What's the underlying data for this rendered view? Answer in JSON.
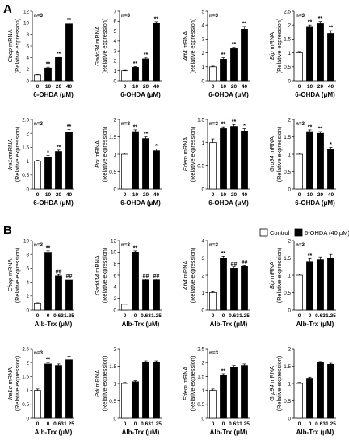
{
  "panels": [
    {
      "letter": "A"
    },
    {
      "letter": "B"
    }
  ],
  "legend": {
    "items": [
      "Control",
      "6-OHDA (40 μM)"
    ]
  },
  "chart_data": [
    {
      "type": "bar",
      "panel": "A",
      "ylabel_gene": "Chop",
      "ylabel_rest": " mRNA",
      "ylabel_unit": "(Relative expression)",
      "n_label": "n=3",
      "xlabel": "6-OHDA (μM)",
      "categories": [
        "0",
        "10",
        "20",
        "40"
      ],
      "values": [
        1,
        2.2,
        4.0,
        9.8
      ],
      "errors": [
        0.05,
        0.15,
        0.15,
        0.2
      ],
      "fill": [
        "white",
        "black",
        "black",
        "black"
      ],
      "marks": [
        "",
        "**",
        "**",
        "**"
      ],
      "ylim": [
        0,
        12
      ],
      "yticks": [
        0,
        2,
        4,
        6,
        8,
        10,
        12
      ]
    },
    {
      "type": "bar",
      "panel": "A",
      "ylabel_gene": "Gadd34",
      "ylabel_rest": " mRNA",
      "ylabel_unit": "(Relative expression)",
      "n_label": "n=3",
      "xlabel": "6-OHDA (μM)",
      "categories": [
        "0",
        "10",
        "20",
        "40"
      ],
      "values": [
        1,
        1.35,
        2.2,
        5.8
      ],
      "errors": [
        0.05,
        0.08,
        0.1,
        0.15
      ],
      "fill": [
        "white",
        "black",
        "black",
        "black"
      ],
      "marks": [
        "",
        "**",
        "**",
        "**"
      ],
      "ylim": [
        0,
        7
      ],
      "yticks": [
        0,
        1,
        2,
        3,
        4,
        5,
        6,
        7
      ]
    },
    {
      "type": "bar",
      "panel": "A",
      "ylabel_gene": "Atf4",
      "ylabel_rest": " mRNA",
      "ylabel_unit": "(Relative expression)",
      "n_label": "n=3",
      "xlabel": "6-OHDA (μM)",
      "categories": [
        "0",
        "10",
        "20",
        "40"
      ],
      "values": [
        1,
        1.55,
        2.3,
        3.7
      ],
      "errors": [
        0.05,
        0.1,
        0.1,
        0.2
      ],
      "fill": [
        "white",
        "black",
        "black",
        "black"
      ],
      "marks": [
        "",
        "**",
        "**",
        "**"
      ],
      "ylim": [
        0,
        5
      ],
      "yticks": [
        0,
        1,
        2,
        3,
        4,
        5
      ]
    },
    {
      "type": "bar",
      "panel": "A",
      "ylabel_gene": "Bip",
      "ylabel_rest": " mRNA",
      "ylabel_unit": "(Relative expression)",
      "n_label": "n=3",
      "xlabel": "6-OHDA (μM)",
      "categories": [
        "0",
        "10",
        "20",
        "40"
      ],
      "values": [
        1,
        1.95,
        2.05,
        1.7
      ],
      "errors": [
        0.05,
        0.05,
        0.08,
        0.1
      ],
      "fill": [
        "white",
        "black",
        "black",
        "black"
      ],
      "marks": [
        "",
        "**",
        "**",
        "**"
      ],
      "ylim": [
        0,
        2.5
      ],
      "yticks": [
        0,
        0.5,
        1,
        1.5,
        2,
        2.5
      ]
    },
    {
      "type": "bar",
      "panel": "A",
      "ylabel_gene": "Ire1α",
      "ylabel_rest": "mRNA",
      "ylabel_unit": "(Relative expression)",
      "n_label": "n=3",
      "xlabel": "6-OHDA (μM)",
      "categories": [
        "0",
        "10",
        "20",
        "40"
      ],
      "values": [
        1,
        1.15,
        1.35,
        2.05
      ],
      "errors": [
        0.03,
        0.05,
        0.05,
        0.08
      ],
      "fill": [
        "white",
        "black",
        "black",
        "black"
      ],
      "marks": [
        "",
        "*",
        "**",
        "**"
      ],
      "ylim": [
        0,
        2.5
      ],
      "yticks": [
        0,
        0.5,
        1,
        1.5,
        2,
        2.5
      ]
    },
    {
      "type": "bar",
      "panel": "A",
      "ylabel_gene": "Pdi",
      "ylabel_rest": " mRNA",
      "ylabel_unit": "(Relative expression)",
      "n_label": "n=3",
      "xlabel": "6-OHDA (μM)",
      "categories": [
        "0",
        "10",
        "20",
        "40"
      ],
      "values": [
        1,
        1.65,
        1.45,
        1.1
      ],
      "errors": [
        0.03,
        0.05,
        0.05,
        0.05
      ],
      "fill": [
        "white",
        "black",
        "black",
        "black"
      ],
      "marks": [
        "",
        "**",
        "**",
        "*"
      ],
      "ylim": [
        0,
        2
      ],
      "yticks": [
        0,
        0.5,
        1,
        1.5,
        2
      ]
    },
    {
      "type": "bar",
      "panel": "A",
      "ylabel_gene": "Edem",
      "ylabel_rest": " mRNA",
      "ylabel_unit": "(Relative expression)",
      "n_label": "n=3",
      "xlabel": "6-OHDA (μM)",
      "categories": [
        "0",
        "10",
        "20",
        "40"
      ],
      "values": [
        1,
        1.3,
        1.35,
        1.25
      ],
      "errors": [
        0.08,
        0.04,
        0.04,
        0.05
      ],
      "fill": [
        "white",
        "black",
        "black",
        "black"
      ],
      "marks": [
        "",
        "**",
        "**",
        "*"
      ],
      "ylim": [
        0,
        1.5
      ],
      "yticks": [
        0,
        0.5,
        1,
        1.5
      ]
    },
    {
      "type": "bar",
      "panel": "A",
      "ylabel_gene": "Grp94",
      "ylabel_rest": " mRNA",
      "ylabel_unit": "(Relative expression)",
      "n_label": "n=3",
      "xlabel": "6-OHDA (μM)",
      "categories": [
        "0",
        "10",
        "20",
        "40"
      ],
      "values": [
        1,
        1.65,
        1.6,
        1.15
      ],
      "errors": [
        0.03,
        0.05,
        0.05,
        0.05
      ],
      "fill": [
        "white",
        "black",
        "black",
        "black"
      ],
      "marks": [
        "",
        "**",
        "**",
        "*"
      ],
      "ylim": [
        0,
        2
      ],
      "yticks": [
        0,
        0.5,
        1,
        1.5,
        2
      ]
    },
    {
      "type": "bar",
      "panel": "B",
      "ylabel_gene": "Chop",
      "ylabel_rest": " mRNA",
      "ylabel_unit": "(Relative expression)",
      "n_label": "n=3",
      "xlabel": "Alb-Trx (μM)",
      "categories": [
        "0",
        "0",
        "0.63",
        "1.25"
      ],
      "values": [
        1,
        8.3,
        4.9,
        4.3
      ],
      "errors": [
        0.05,
        0.2,
        0.2,
        0.2
      ],
      "fill": [
        "white",
        "black",
        "black",
        "black"
      ],
      "marks": [
        "",
        "**",
        "##",
        "##"
      ],
      "ylim": [
        0,
        10
      ],
      "yticks": [
        0,
        2,
        4,
        6,
        8,
        10
      ]
    },
    {
      "type": "bar",
      "panel": "B",
      "ylabel_gene": "Gadd34",
      "ylabel_rest": " mRNA",
      "ylabel_unit": "(Relative expression)",
      "n_label": "n=3",
      "xlabel": "Alb-Trx (μM)",
      "categories": [
        "0",
        "0",
        "0.63",
        "1.25"
      ],
      "values": [
        1,
        10,
        5.2,
        5.2
      ],
      "errors": [
        0.05,
        0.2,
        0.2,
        0.15
      ],
      "fill": [
        "white",
        "black",
        "black",
        "black"
      ],
      "marks": [
        "",
        "**",
        "##",
        "##"
      ],
      "ylim": [
        0,
        12
      ],
      "yticks": [
        0,
        2,
        4,
        6,
        8,
        10,
        12
      ]
    },
    {
      "type": "bar",
      "panel": "B",
      "ylabel_gene": "Atf4",
      "ylabel_rest": " mRNA",
      "ylabel_unit": "(Relative expression)",
      "n_label": "n=3",
      "xlabel": "Alb-Trx (μM)",
      "categories": [
        "0",
        "0",
        "0.63",
        "1.25"
      ],
      "values": [
        1,
        3.0,
        2.4,
        2.5
      ],
      "errors": [
        0.05,
        0.1,
        0.08,
        0.08
      ],
      "fill": [
        "white",
        "black",
        "black",
        "black"
      ],
      "marks": [
        "",
        "**",
        "##",
        "##"
      ],
      "ylim": [
        0,
        4
      ],
      "yticks": [
        0,
        1,
        2,
        3,
        4
      ]
    },
    {
      "type": "bar",
      "panel": "B",
      "ylabel_gene": "Bip",
      "ylabel_rest": " mRNA",
      "ylabel_unit": "(Relative expression)",
      "n_label": "n=3",
      "xlabel": "Alb-Trx (μM)",
      "categories": [
        "0",
        "0",
        "0.63",
        "1.25"
      ],
      "values": [
        1,
        1.4,
        1.45,
        1.5
      ],
      "errors": [
        0.03,
        0.08,
        0.08,
        0.1
      ],
      "fill": [
        "white",
        "black",
        "black",
        "black"
      ],
      "marks": [
        "",
        "**",
        "",
        ""
      ],
      "ylim": [
        0,
        2
      ],
      "yticks": [
        0,
        0.5,
        1,
        1.5,
        2
      ]
    },
    {
      "type": "bar",
      "panel": "B",
      "ylabel_gene": "Ire1α",
      "ylabel_rest": " mRNA",
      "ylabel_unit": "(Relative expression)",
      "n_label": "n=3",
      "xlabel": "Alb-Trx (μM)",
      "categories": [
        "0",
        "0",
        "0.63",
        "1.25"
      ],
      "values": [
        1,
        1.95,
        1.9,
        2.1
      ],
      "errors": [
        0.05,
        0.05,
        0.05,
        0.12
      ],
      "fill": [
        "white",
        "black",
        "black",
        "black"
      ],
      "marks": [
        "",
        "**",
        "",
        ""
      ],
      "ylim": [
        0,
        2.5
      ],
      "yticks": [
        0,
        0.5,
        1,
        1.5,
        2,
        2.5
      ]
    },
    {
      "type": "bar",
      "panel": "B",
      "ylabel_gene": "Pdi",
      "ylabel_rest": " mRNA",
      "ylabel_unit": "(Relative expression)",
      "n_label": "",
      "xlabel": "Alb-Trx (μM)",
      "categories": [
        "0",
        "0",
        "0.63",
        "1.25"
      ],
      "values": [
        1,
        1.05,
        1.6,
        1.6
      ],
      "errors": [
        0.03,
        0.03,
        0.05,
        0.05
      ],
      "fill": [
        "white",
        "black",
        "black",
        "black"
      ],
      "marks": [
        "",
        "",
        "",
        ""
      ],
      "ylim": [
        0,
        2
      ],
      "yticks": [
        0,
        0.5,
        1,
        1.5,
        2
      ]
    },
    {
      "type": "bar",
      "panel": "B",
      "ylabel_gene": "Edem",
      "ylabel_rest": " mRNA",
      "ylabel_unit": "(Relative expression)",
      "n_label": "n=3",
      "xlabel": "Alb-Trx (μM)",
      "categories": [
        "0",
        "0",
        "0.63",
        "1.25"
      ],
      "values": [
        1,
        1.55,
        1.85,
        1.9
      ],
      "errors": [
        0.05,
        0.05,
        0.05,
        0.05
      ],
      "fill": [
        "white",
        "black",
        "black",
        "black"
      ],
      "marks": [
        "",
        "**",
        "",
        ""
      ],
      "ylim": [
        0,
        2.5
      ],
      "yticks": [
        0,
        0.5,
        1,
        1.5,
        2,
        2.5
      ]
    },
    {
      "type": "bar",
      "panel": "B",
      "ylabel_gene": "Grp94",
      "ylabel_rest": " mRNA",
      "ylabel_unit": "(Relative expression)",
      "n_label": "",
      "xlabel": "Alb-Trx (μM)",
      "categories": [
        "0",
        "0",
        "0.63",
        "1.25"
      ],
      "values": [
        1,
        1.15,
        1.6,
        1.55
      ],
      "errors": [
        0.03,
        0.03,
        0.03,
        0.03
      ],
      "fill": [
        "white",
        "black",
        "black",
        "black"
      ],
      "marks": [
        "",
        "",
        "",
        ""
      ],
      "ylim": [
        0,
        2
      ],
      "yticks": [
        0,
        0.5,
        1,
        1.5,
        2
      ]
    }
  ]
}
